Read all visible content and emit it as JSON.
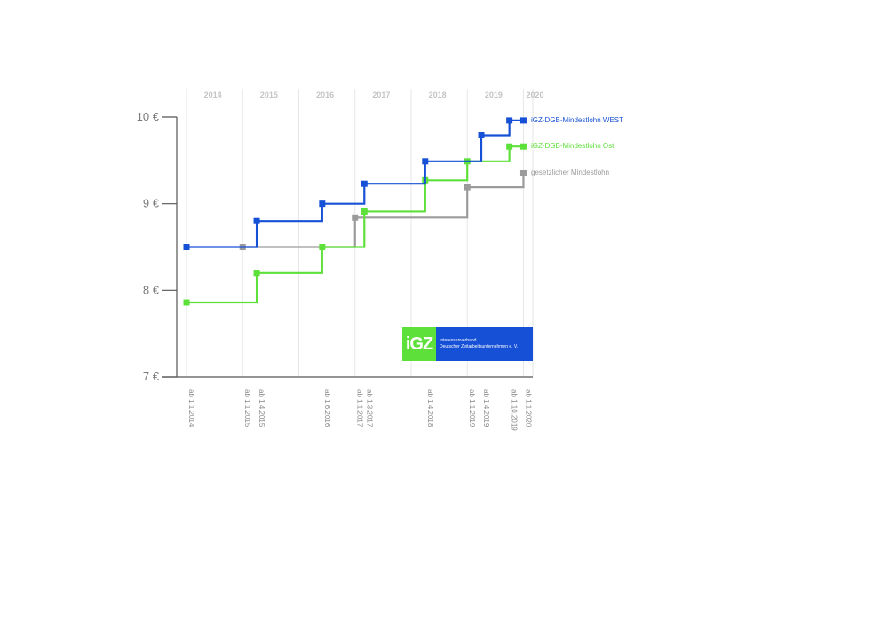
{
  "chart_data": {
    "type": "line",
    "step": true,
    "y_ticks": [
      "10 €",
      "9 €",
      "8 €",
      "7 €"
    ],
    "y_tick_values": [
      10,
      9,
      8,
      7
    ],
    "ylim": [
      7,
      10
    ],
    "xlim": [
      "2014-01-01",
      "2020-03-01"
    ],
    "year_labels": [
      "2014",
      "2015",
      "2016",
      "2017",
      "2018",
      "2019",
      "2020"
    ],
    "date_labels": [
      {
        "date": "2014-01-01",
        "label": "ab 1.1.2014"
      },
      {
        "date": "2015-01-01",
        "label": "ab 1.1.2015"
      },
      {
        "date": "2015-04-01",
        "label": "ab 1.4.2015"
      },
      {
        "date": "2016-06-01",
        "label": "ab 1.6.2016"
      },
      {
        "date": "2017-01-01",
        "label": "ab 1.1.2017"
      },
      {
        "date": "2017-03-01",
        "label": "ab 1.3.2017"
      },
      {
        "date": "2018-04-01",
        "label": "ab 1.4.2018"
      },
      {
        "date": "2019-01-01",
        "label": "ab 1.1.2019"
      },
      {
        "date": "2019-04-01",
        "label": "ab 1.4.2019"
      },
      {
        "date": "2019-10-01",
        "label": "ab 1.10.2019"
      },
      {
        "date": "2020-01-01",
        "label": "ab 1.1.2020"
      }
    ],
    "series": [
      {
        "name": "iGZ-DGB-Mindestlohn WEST",
        "color": "#1650d6",
        "points": [
          {
            "date": "2014-01-01",
            "value": 8.5
          },
          {
            "date": "2015-04-01",
            "value": 8.8
          },
          {
            "date": "2016-06-01",
            "value": 9.0
          },
          {
            "date": "2017-03-01",
            "value": 9.23
          },
          {
            "date": "2018-04-01",
            "value": 9.49
          },
          {
            "date": "2019-04-01",
            "value": 9.79
          },
          {
            "date": "2019-10-01",
            "value": 9.96
          },
          {
            "date": "2020-01-01",
            "value": 9.96
          }
        ]
      },
      {
        "name": "iGZ-DGB-Mindestlohn Ost",
        "color": "#5ee03a",
        "points": [
          {
            "date": "2014-01-01",
            "value": 7.86
          },
          {
            "date": "2015-04-01",
            "value": 8.2
          },
          {
            "date": "2016-06-01",
            "value": 8.5
          },
          {
            "date": "2017-03-01",
            "value": 8.91
          },
          {
            "date": "2018-04-01",
            "value": 9.27
          },
          {
            "date": "2019-01-01",
            "value": 9.49
          },
          {
            "date": "2019-10-01",
            "value": 9.66
          },
          {
            "date": "2020-01-01",
            "value": 9.66
          }
        ]
      },
      {
        "name": "gesetzlicher Mindestlohn",
        "color": "#9b9b9b",
        "points": [
          {
            "date": "2015-01-01",
            "value": 8.5
          },
          {
            "date": "2017-01-01",
            "value": 8.84
          },
          {
            "date": "2019-01-01",
            "value": 9.19
          },
          {
            "date": "2020-01-01",
            "value": 9.35
          }
        ]
      }
    ]
  },
  "logo": {
    "mark": "iGZ",
    "line1": "Interessenverband",
    "line2": "Deutscher Zeitarbeitsunternehmen e. V."
  }
}
